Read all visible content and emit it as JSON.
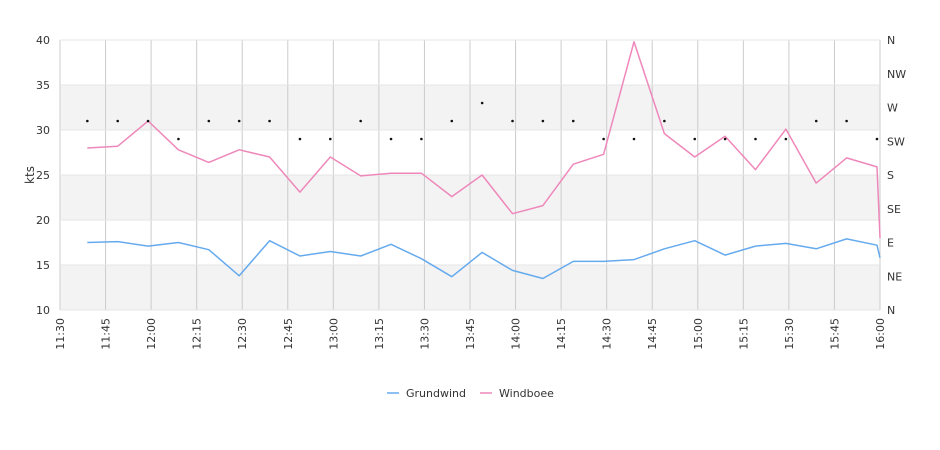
{
  "chart_data": {
    "type": "line",
    "ylabel": "kts",
    "ylim": [
      10,
      40
    ],
    "yticks": [
      10,
      15,
      20,
      25,
      30,
      35,
      40
    ],
    "xlim_minutes": [
      690,
      960
    ],
    "xticks": [
      "11:30",
      "11:45",
      "12:00",
      "12:15",
      "12:30",
      "12:45",
      "13:00",
      "13:15",
      "13:30",
      "13:45",
      "14:00",
      "14:15",
      "14:30",
      "14:45",
      "15:00",
      "15:15",
      "15:30",
      "15:45",
      "16:00"
    ],
    "direction_ticks": [
      "N",
      "NW",
      "W",
      "SW",
      "S",
      "SE",
      "E",
      "NE",
      "N"
    ],
    "grid": true,
    "legend_position": "bottom-center",
    "series": [
      {
        "name": "Grundwind",
        "color": "#66aaee",
        "x": [
          "11:39",
          "11:49",
          "11:59",
          "12:09",
          "12:19",
          "12:29",
          "12:39",
          "12:49",
          "12:59",
          "13:09",
          "13:19",
          "13:29",
          "13:39",
          "13:49",
          "13:59",
          "14:09",
          "14:19",
          "14:29",
          "14:39",
          "14:49",
          "14:59",
          "15:09",
          "15:19",
          "15:29",
          "15:39",
          "15:49",
          "15:59",
          "16:00"
        ],
        "values": [
          17.5,
          17.6,
          17.1,
          17.5,
          16.7,
          13.8,
          17.7,
          16.0,
          16.5,
          16.0,
          17.3,
          15.7,
          13.7,
          16.4,
          14.4,
          13.5,
          15.4,
          15.4,
          15.6,
          16.8,
          17.7,
          16.1,
          17.1,
          17.4,
          16.8,
          17.9,
          17.2,
          15.8
        ]
      },
      {
        "name": "Windboee",
        "color": "#ee88bb",
        "x": [
          "11:39",
          "11:49",
          "11:59",
          "12:09",
          "12:19",
          "12:29",
          "12:39",
          "12:49",
          "12:59",
          "13:09",
          "13:19",
          "13:29",
          "13:39",
          "13:49",
          "13:59",
          "14:09",
          "14:19",
          "14:29",
          "14:39",
          "14:49",
          "14:59",
          "15:09",
          "15:19",
          "15:29",
          "15:39",
          "15:49",
          "15:59",
          "16:00"
        ],
        "values": [
          28.0,
          28.2,
          31.0,
          27.8,
          26.4,
          27.8,
          27.0,
          23.1,
          27.0,
          24.9,
          25.2,
          25.2,
          22.6,
          25.0,
          20.7,
          21.6,
          26.2,
          27.3,
          39.8,
          29.6,
          27.0,
          29.3,
          25.6,
          30.1,
          24.1,
          26.9,
          25.9,
          18.0
        ]
      }
    ],
    "direction_points": {
      "x": [
        "11:39",
        "11:49",
        "11:59",
        "12:09",
        "12:19",
        "12:29",
        "12:39",
        "12:49",
        "12:59",
        "13:09",
        "13:19",
        "13:29",
        "13:39",
        "13:49",
        "13:59",
        "14:09",
        "14:19",
        "14:29",
        "14:39",
        "14:49",
        "14:59",
        "15:09",
        "15:19",
        "15:29",
        "15:39",
        "15:49",
        "15:59"
      ],
      "values": [
        31,
        31,
        31,
        29,
        31,
        31,
        31,
        29,
        29,
        31,
        29,
        29,
        31,
        33,
        31,
        31,
        31,
        29,
        29,
        31,
        29,
        29,
        29,
        29,
        31,
        31,
        29
      ]
    }
  }
}
